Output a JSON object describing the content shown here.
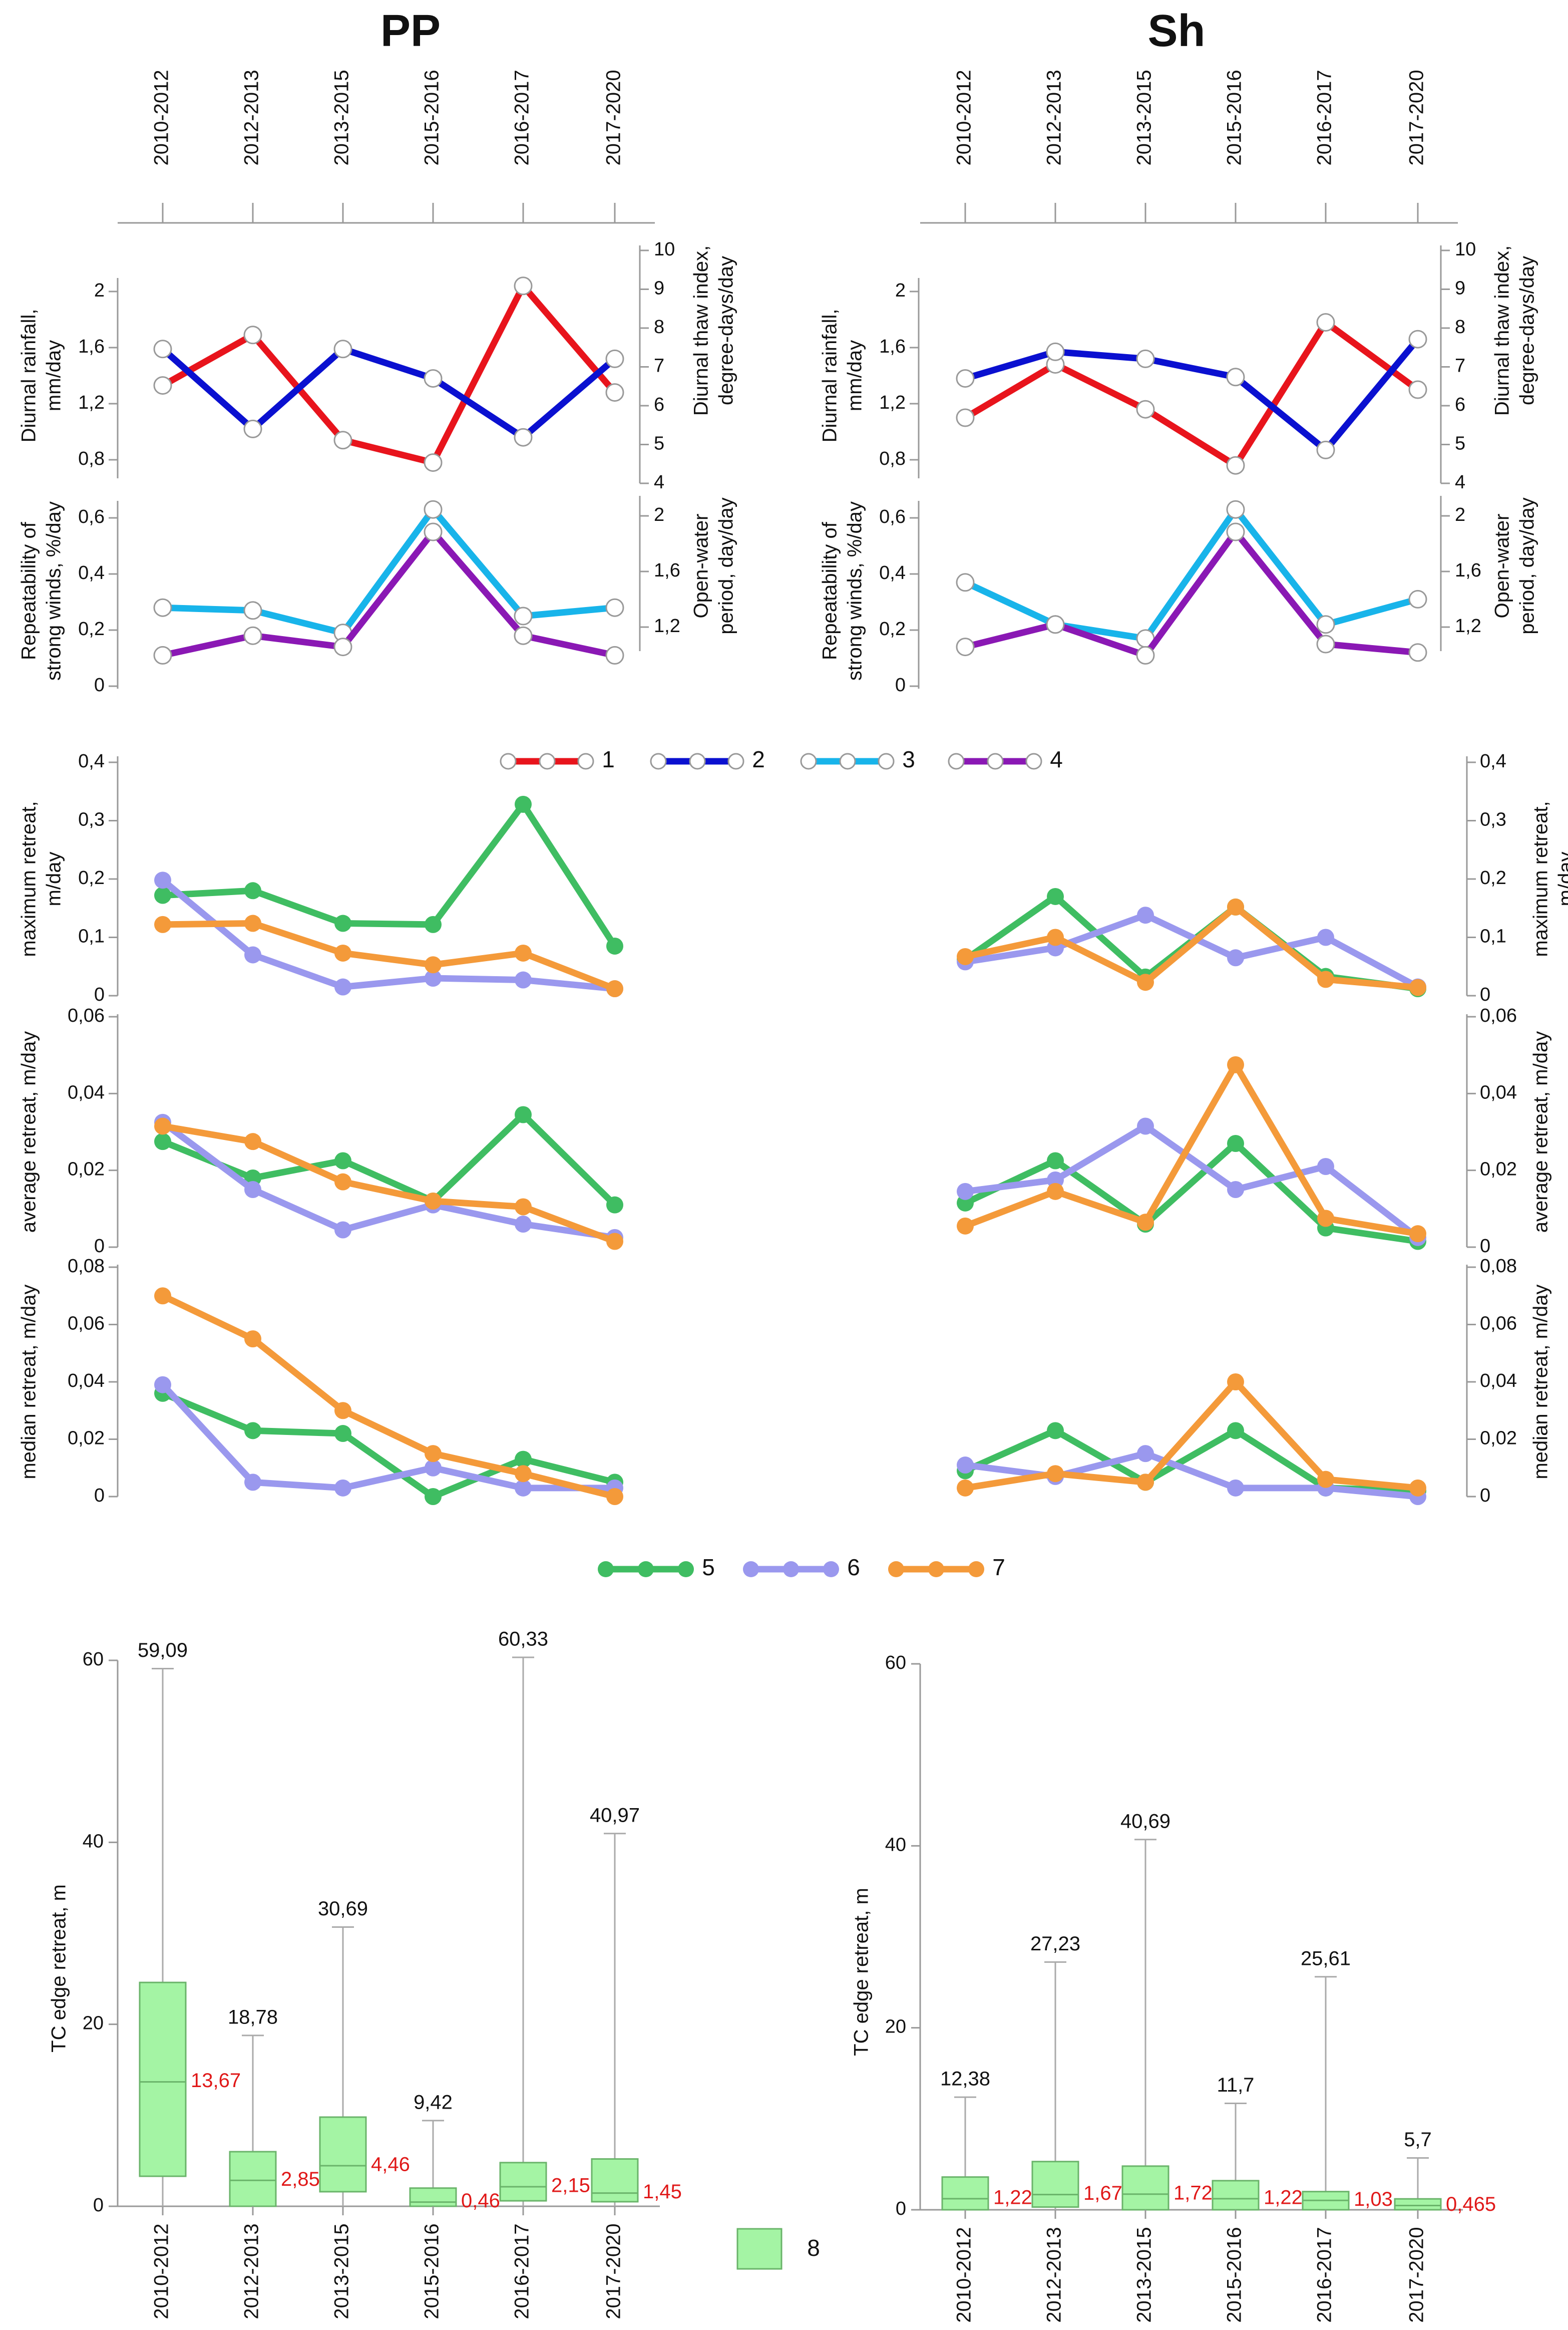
{
  "colors": {
    "rainfall": "#e8141c",
    "thaw": "#0a10d0",
    "winds": "#18b4ea",
    "openwater": "#8a18b4",
    "max": "#3fbd62",
    "avg": "#9a98ee",
    "median": "#f49a3a",
    "box": "#a4f4a4",
    "axis": "#999999",
    "median_label": "#e01818"
  },
  "chart_data": [
    {
      "panel": "PP",
      "title": "PP",
      "type": "line",
      "categories": [
        "2010-2012",
        "2012-2013",
        "2013-2015",
        "2015-2016",
        "2016-2017",
        "2017-2020"
      ],
      "climate": {
        "top": {
          "left_ylabel": [
            "Diurnal rainfall,",
            "mm/day"
          ],
          "right_ylabel": [
            "Diurnal thaw index,",
            "degree-days/day"
          ],
          "left_ticks": [
            "0,8",
            "1,2",
            "1,6",
            "2"
          ],
          "right_ticks": [
            "4",
            "5",
            "6",
            "7",
            "8",
            "9",
            "10"
          ],
          "ylim_left": [
            0.8,
            2.0
          ],
          "ylim_right": [
            4,
            10
          ],
          "series": [
            {
              "id": "1",
              "name": "Diurnal rainfall",
              "axis": "left",
              "label": "1",
              "values": [
                1.33,
                1.69,
                0.94,
                0.78,
                2.04,
                1.28
              ]
            },
            {
              "id": "2",
              "name": "Diurnal thaw index",
              "axis": "left",
              "label": "2",
              "values": [
                1.59,
                1.02,
                1.59,
                1.38,
                0.96,
                1.52
              ]
            }
          ]
        },
        "bottom": {
          "left_ylabel": [
            "Repeatability of",
            "strong winds, %/day"
          ],
          "right_ylabel": [
            "Open-water",
            "period, day/day"
          ],
          "left_ticks": [
            "0",
            "0,2",
            "0,4",
            "0,6"
          ],
          "right_ticks": [
            "1,2",
            "1,6",
            "2"
          ],
          "ylim_left": [
            0,
            0.6
          ],
          "series": [
            {
              "id": "3",
              "name": "Repeatability of strong winds",
              "axis": "left",
              "label": "3",
              "values": [
                0.28,
                0.27,
                0.19,
                0.63,
                0.25,
                0.28
              ]
            },
            {
              "id": "4",
              "name": "Open-water period",
              "axis": "left",
              "label": "4",
              "values": [
                0.11,
                0.18,
                0.14,
                0.55,
                0.18,
                0.11
              ]
            }
          ]
        }
      },
      "retreat": {
        "max": {
          "ylabel": [
            "maximum retreat,",
            "m/day"
          ],
          "ticks": [
            "0",
            "0,1",
            "0,2",
            "0,3",
            "0,4"
          ],
          "ylim": [
            0,
            0.4
          ],
          "series": [
            {
              "id": "5",
              "label": "5",
              "values": [
                0.172,
                0.18,
                0.124,
                0.122,
                0.328,
                0.085
              ]
            },
            {
              "id": "6",
              "label": "6",
              "values": [
                0.198,
                0.07,
                0.015,
                0.03,
                0.027,
                0.012
              ]
            },
            {
              "id": "7",
              "label": "7",
              "values": [
                0.122,
                0.124,
                0.073,
                0.053,
                0.073,
                0.012
              ]
            }
          ]
        },
        "avg": {
          "ylabel": [
            "average retreat, m/day"
          ],
          "ticks": [
            "0",
            "0,02",
            "0,04",
            "0,06"
          ],
          "ylim": [
            0,
            0.06
          ],
          "series": [
            {
              "id": "5",
              "label": "5",
              "values": [
                0.0275,
                0.018,
                0.0225,
                0.012,
                0.0345,
                0.011
              ]
            },
            {
              "id": "6",
              "label": "6",
              "values": [
                0.0325,
                0.015,
                0.0045,
                0.011,
                0.006,
                0.0025
              ]
            },
            {
              "id": "7",
              "label": "7",
              "values": [
                0.0315,
                0.0275,
                0.017,
                0.012,
                0.0105,
                0.0015
              ]
            }
          ]
        },
        "median": {
          "ylabel": [
            "median retreat, m/day"
          ],
          "ticks": [
            "0",
            "0,02",
            "0,04",
            "0,06",
            "0,08"
          ],
          "ylim": [
            0,
            0.08
          ],
          "series": [
            {
              "id": "5",
              "label": "5",
              "values": [
                0.036,
                0.023,
                0.022,
                0.0,
                0.013,
                0.005
              ]
            },
            {
              "id": "6",
              "label": "6",
              "values": [
                0.039,
                0.005,
                0.003,
                0.01,
                0.003,
                0.003
              ]
            },
            {
              "id": "7",
              "label": "7",
              "values": [
                0.07,
                0.055,
                0.03,
                0.015,
                0.008,
                0.0
              ]
            }
          ]
        }
      },
      "boxplot": {
        "type": "box",
        "ylabel": "TC edge retreat, m",
        "ylim": [
          0,
          60
        ],
        "ticks": [
          "0",
          "20",
          "40",
          "60"
        ],
        "series": [
          {
            "category": "2010-2012",
            "q1": 3.3,
            "median": 13.67,
            "q3": 24.6,
            "max": 59.09,
            "max_label": "59,09",
            "median_label": "13,67"
          },
          {
            "category": "2012-2013",
            "q1": 0.0,
            "median": 2.85,
            "q3": 6.0,
            "max": 18.78,
            "max_label": "18,78",
            "median_label": "2,85"
          },
          {
            "category": "2013-2015",
            "q1": 1.6,
            "median": 4.46,
            "q3": 9.8,
            "max": 30.69,
            "max_label": "30,69",
            "median_label": "4,46"
          },
          {
            "category": "2015-2016",
            "q1": 0.0,
            "median": 0.46,
            "q3": 2.0,
            "max": 9.42,
            "max_label": "9,42",
            "median_label": "0,46"
          },
          {
            "category": "2016-2017",
            "q1": 0.6,
            "median": 2.15,
            "q3": 4.8,
            "max": 60.33,
            "max_label": "60,33",
            "median_label": "2,15"
          },
          {
            "category": "2017-2020",
            "q1": 0.5,
            "median": 1.45,
            "q3": 5.2,
            "max": 40.97,
            "max_label": "40,97",
            "median_label": "1,45"
          }
        ]
      }
    },
    {
      "panel": "Sh",
      "title": "Sh",
      "type": "line",
      "categories": [
        "2010-2012",
        "2012-2013",
        "2013-2015",
        "2015-2016",
        "2016-2017",
        "2017-2020"
      ],
      "climate": {
        "top": {
          "left_ylabel": [
            "Diurnal rainfall,",
            "mm/day"
          ],
          "right_ylabel": [
            "Diurnal thaw index,",
            "degree-days/day"
          ],
          "left_ticks": [
            "0,8",
            "1,2",
            "1,6",
            "2"
          ],
          "right_ticks": [
            "4",
            "5",
            "6",
            "7",
            "8",
            "9",
            "10"
          ],
          "ylim_left": [
            0.8,
            2.0
          ],
          "ylim_right": [
            4,
            10
          ],
          "series": [
            {
              "id": "1",
              "name": "Diurnal rainfall",
              "axis": "left",
              "label": "1",
              "values": [
                1.1,
                1.48,
                1.16,
                0.76,
                1.78,
                1.3
              ]
            },
            {
              "id": "2",
              "name": "Diurnal thaw index",
              "axis": "left",
              "label": "2",
              "values": [
                1.38,
                1.57,
                1.52,
                1.39,
                0.87,
                1.66
              ]
            }
          ]
        },
        "bottom": {
          "left_ylabel": [
            "Repeatability of",
            "strong winds, %/day"
          ],
          "right_ylabel": [
            "Open-water",
            "period, day/day"
          ],
          "left_ticks": [
            "0",
            "0,2",
            "0,4",
            "0,6"
          ],
          "right_ticks": [
            "1,2",
            "1,6",
            "2"
          ],
          "ylim_left": [
            0,
            0.6
          ],
          "series": [
            {
              "id": "3",
              "name": "Repeatability of strong winds",
              "axis": "left",
              "label": "3",
              "values": [
                0.37,
                0.22,
                0.17,
                0.63,
                0.22,
                0.31
              ]
            },
            {
              "id": "4",
              "name": "Open-water period",
              "axis": "left",
              "label": "4",
              "values": [
                0.14,
                0.22,
                0.11,
                0.55,
                0.15,
                0.12
              ]
            }
          ]
        }
      },
      "retreat": {
        "max": {
          "ylabel": [
            "maximum retreat,",
            "m/day"
          ],
          "ticks": [
            "0",
            "0,1",
            "0,2",
            "0,3",
            "0,4"
          ],
          "ylim": [
            0,
            0.4
          ],
          "series": [
            {
              "id": "5",
              "label": "5",
              "values": [
                0.062,
                0.17,
                0.032,
                0.152,
                0.033,
                0.012
              ]
            },
            {
              "id": "6",
              "label": "6",
              "values": [
                0.058,
                0.082,
                0.138,
                0.065,
                0.1,
                0.015
              ]
            },
            {
              "id": "7",
              "label": "7",
              "values": [
                0.067,
                0.1,
                0.023,
                0.152,
                0.028,
                0.014
              ]
            }
          ]
        },
        "avg": {
          "ylabel": [
            "average retreat, m/day"
          ],
          "ticks": [
            "0",
            "0,02",
            "0,04",
            "0,06"
          ],
          "ylim": [
            0,
            0.06
          ],
          "series": [
            {
              "id": "5",
              "label": "5",
              "values": [
                0.0115,
                0.0225,
                0.006,
                0.027,
                0.005,
                0.0015
              ]
            },
            {
              "id": "6",
              "label": "6",
              "values": [
                0.0145,
                0.0175,
                0.0315,
                0.015,
                0.021,
                0.0025
              ]
            },
            {
              "id": "7",
              "label": "7",
              "values": [
                0.0055,
                0.0145,
                0.0065,
                0.0475,
                0.0075,
                0.0035
              ]
            }
          ]
        },
        "median": {
          "ylabel": [
            "median retreat, m/day"
          ],
          "ticks": [
            "0",
            "0,02",
            "0,04",
            "0,06",
            "0,08"
          ],
          "ylim": [
            0,
            0.08
          ],
          "series": [
            {
              "id": "5",
              "label": "5",
              "values": [
                0.009,
                0.023,
                0.005,
                0.023,
                0.003,
                0.002
              ]
            },
            {
              "id": "6",
              "label": "6",
              "values": [
                0.011,
                0.007,
                0.015,
                0.003,
                0.003,
                0.0
              ]
            },
            {
              "id": "7",
              "label": "7",
              "values": [
                0.003,
                0.008,
                0.005,
                0.04,
                0.006,
                0.003
              ]
            }
          ]
        }
      },
      "boxplot": {
        "type": "box",
        "ylabel": "TC edge retreat, m",
        "ylim": [
          0,
          60
        ],
        "ticks": [
          "0",
          "20",
          "40",
          "60"
        ],
        "series": [
          {
            "category": "2010-2012",
            "q1": 0.0,
            "median": 1.22,
            "q3": 3.6,
            "max": 12.38,
            "max_label": "12,38",
            "median_label": "1,22"
          },
          {
            "category": "2012-2013",
            "q1": 0.3,
            "median": 1.67,
            "q3": 5.3,
            "max": 27.23,
            "max_label": "27,23",
            "median_label": "1,67"
          },
          {
            "category": "2013-2015",
            "q1": 0.0,
            "median": 1.72,
            "q3": 4.8,
            "max": 40.69,
            "max_label": "40,69",
            "median_label": "1,72"
          },
          {
            "category": "2015-2016",
            "q1": 0.0,
            "median": 1.22,
            "q3": 3.2,
            "max": 11.7,
            "max_label": "11,7",
            "median_label": "1,22"
          },
          {
            "category": "2016-2017",
            "q1": 0.0,
            "median": 1.03,
            "q3": 2.0,
            "max": 25.61,
            "max_label": "25,61",
            "median_label": "1,03"
          },
          {
            "category": "2017-2020",
            "q1": 0.0,
            "median": 0.465,
            "q3": 1.2,
            "max": 5.7,
            "max_label": "5,7",
            "median_label": "0,465"
          }
        ]
      }
    }
  ],
  "legend_climate": [
    {
      "id": "1",
      "label": "1",
      "color_key": "rainfall"
    },
    {
      "id": "2",
      "label": "2",
      "color_key": "thaw"
    },
    {
      "id": "3",
      "label": "3",
      "color_key": "winds"
    },
    {
      "id": "4",
      "label": "4",
      "color_key": "openwater"
    }
  ],
  "legend_retreat": [
    {
      "id": "5",
      "label": "5",
      "color_key": "max"
    },
    {
      "id": "6",
      "label": "6",
      "color_key": "avg"
    },
    {
      "id": "7",
      "label": "7",
      "color_key": "median"
    }
  ],
  "legend_box": {
    "label": "8"
  }
}
